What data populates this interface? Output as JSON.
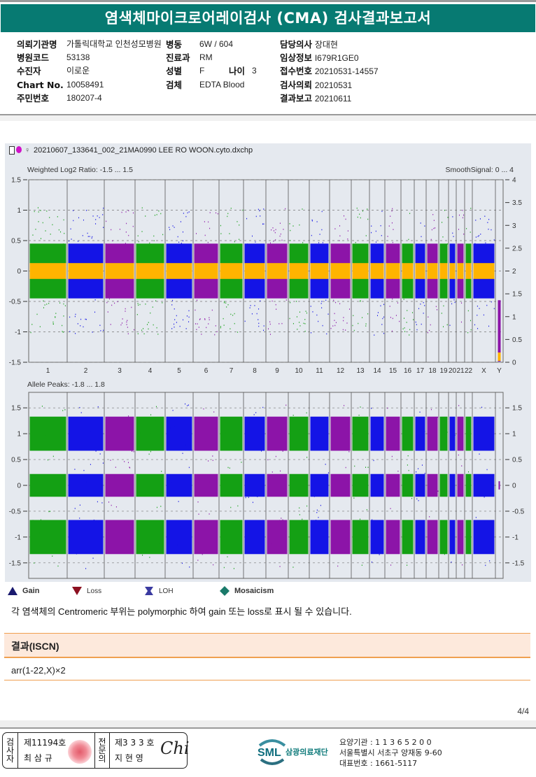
{
  "report": {
    "title": "염색체마이크로어레이검사 (CMA) 검사결과보고서"
  },
  "patient_info": {
    "left": [
      {
        "label": "의뢰기관명",
        "value": "가톨릭대학교 인천성모병원"
      },
      {
        "label": "병원코드",
        "value": "53138"
      },
      {
        "label": "수진자",
        "value": "이로운"
      },
      {
        "label": "Chart No.",
        "value": "10058491"
      },
      {
        "label": "주민번호",
        "value": "180207-4"
      }
    ],
    "middle": [
      {
        "label": "병동",
        "value": "6W / 604"
      },
      {
        "label": "진료과",
        "value": "RM"
      },
      {
        "label": "성별",
        "value": "F"
      },
      {
        "label": "검체",
        "value": "EDTA Blood"
      }
    ],
    "age": {
      "label": "나이",
      "value": "3"
    },
    "right": [
      {
        "label": "담당의사",
        "value": "장대현"
      },
      {
        "label": "임상정보",
        "value": "I679R1GE0"
      },
      {
        "label": "접수번호",
        "value": "20210531-14557"
      },
      {
        "label": "검사의뢰",
        "value": "20210531"
      },
      {
        "label": "결과보고",
        "value": "20210611"
      }
    ]
  },
  "chart_header": {
    "file_name": "20210607_133641_002_21MA0990 LEE RO WOON.cyto.dxchp",
    "sex_symbol": "♀"
  },
  "chart_data": [
    {
      "type": "scatter",
      "title": "Weighted Log2 Ratio: -1.5 ... 1.5",
      "right_title": "SmoothSignal: 0 ... 4",
      "ylim": [
        -1.5,
        1.5
      ],
      "y_ticks": [
        "1.5",
        "1",
        "0.5",
        "0",
        "-0.5",
        "-1",
        "-1.5"
      ],
      "y2lim": [
        0,
        4
      ],
      "y2_ticks": [
        "4",
        "3.5",
        "3",
        "2.5",
        "2",
        "1.5",
        "1",
        "0.5",
        "0"
      ],
      "grid": true,
      "x_categories": [
        "1",
        "2",
        "3",
        "4",
        "5",
        "6",
        "7",
        "8",
        "9",
        "10",
        "11",
        "12",
        "13",
        "14",
        "15",
        "16",
        "17",
        "18",
        "19",
        "20",
        "21",
        "22",
        "X",
        "Y"
      ],
      "chromosome_colors": [
        "green",
        "blue",
        "purple",
        "green",
        "blue",
        "purple",
        "green",
        "blue",
        "purple",
        "green",
        "blue",
        "purple",
        "green",
        "blue",
        "purple",
        "green",
        "blue",
        "purple",
        "green",
        "blue",
        "purple",
        "green",
        "blue",
        "purple"
      ],
      "log2_ratio_center": 0,
      "log2_band_halfwidth": 0.45,
      "smooth_signal_level": 2,
      "smooth_signal_Y": 0
    },
    {
      "type": "scatter",
      "title": "Allele Peaks: -1.8 ... 1.8",
      "ylim": [
        -1.8,
        1.8
      ],
      "y_ticks": [
        "1.5",
        "1",
        "0.5",
        "0",
        "-0.5",
        "-1",
        "-1.5"
      ],
      "grid": true,
      "x_categories": [
        "1",
        "2",
        "3",
        "4",
        "5",
        "6",
        "7",
        "8",
        "9",
        "10",
        "11",
        "12",
        "13",
        "14",
        "15",
        "16",
        "17",
        "18",
        "19",
        "20",
        "21",
        "22",
        "X",
        "Y"
      ],
      "allele_peak_levels": [
        1.0,
        0.0,
        -1.0
      ]
    }
  ],
  "colors": {
    "title_bg": "#077a72",
    "green": "#14a014",
    "blue": "#1414e6",
    "purple": "#8c14a8",
    "smooth": "#ffb400",
    "result_bg": "#fde9dc",
    "result_border": "#f0a050"
  },
  "legend": [
    {
      "icon": "gain-triangle-icon",
      "label": "Gain"
    },
    {
      "icon": "loss-triangle-icon",
      "label": "Loss"
    },
    {
      "icon": "loh-icon",
      "label": "LOH"
    },
    {
      "icon": "mosaicism-diamond-icon",
      "label": "Mosaicism"
    }
  ],
  "note": "각 염색체의 Centromeric 부위는 polymorphic 하여 gain 또는 loss로 표시 될 수 있습니다.",
  "result": {
    "heading": "결과(ISCN)",
    "value": "arr(1-22,X)×2"
  },
  "page": "4/4",
  "footer": {
    "examiner_label": [
      "검",
      "사",
      "자"
    ],
    "examiner_no": "제11194호",
    "examiner_name": "최 삼 규",
    "specialist_label": [
      "전",
      "문",
      "의"
    ],
    "specialist_no": "제3 3 3 호",
    "specialist_name": "지 현 영",
    "signature": "Chi",
    "logo_text": "SML",
    "org_name": "삼광의료재단",
    "org_lines": [
      "요양기관 : 1 1 3 6 5 2 0 0",
      "서울특별시 서초구 양재동 9-60",
      "대표번호 : 1661-5117"
    ]
  }
}
